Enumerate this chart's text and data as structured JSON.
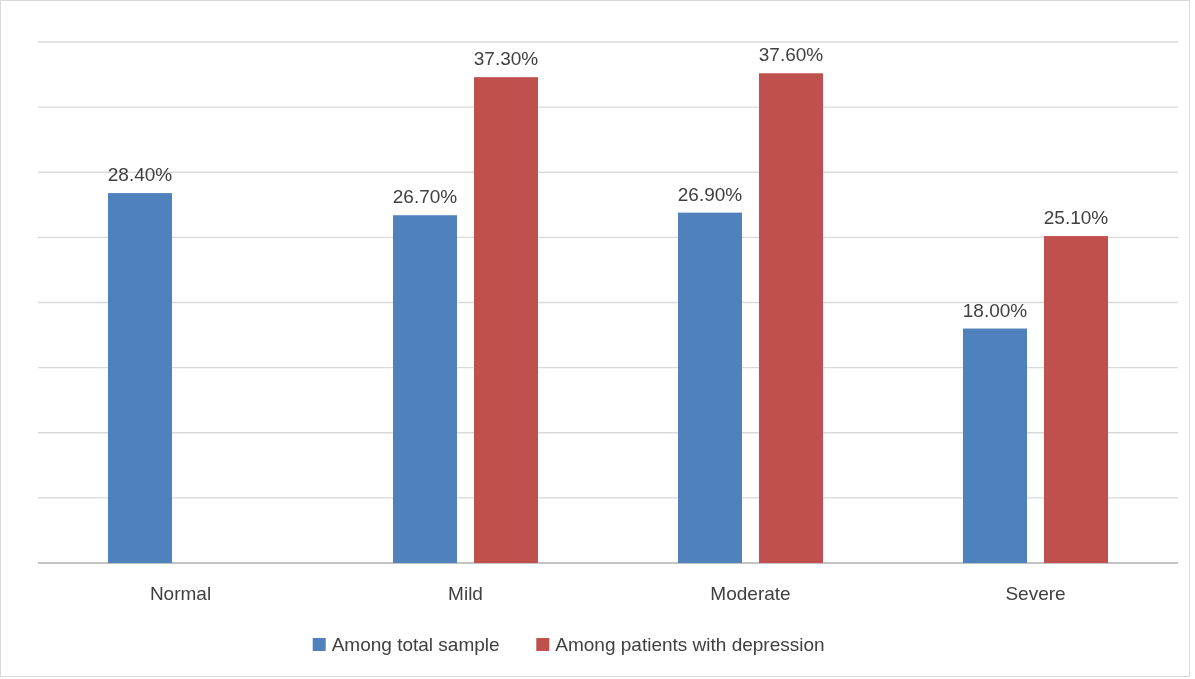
{
  "chart_data": {
    "type": "bar",
    "categories": [
      "Normal",
      "Mild",
      "Moderate",
      "Severe"
    ],
    "series": [
      {
        "name": "Among total sample",
        "color": "#4f81bd",
        "values": [
          28.4,
          26.7,
          26.9,
          18.0
        ],
        "value_labels": [
          "28.40%",
          "26.70%",
          "26.90%",
          "18.00%"
        ]
      },
      {
        "name": "Among patients with depression",
        "color": "#c0504d",
        "values": [
          null,
          37.3,
          37.6,
          25.1
        ],
        "value_labels": [
          null,
          "37.30%",
          "37.60%",
          "25.10%"
        ]
      }
    ],
    "ylim": [
      0,
      40
    ],
    "yticks": [
      {
        "value": 0,
        "label": null
      },
      {
        "value": 5,
        "label": null
      },
      {
        "value": 10,
        "label": null
      },
      {
        "value": 15,
        "label": null
      },
      {
        "value": 20,
        "label": null
      },
      {
        "value": 25,
        "label": null
      },
      {
        "value": 30,
        "label": null
      },
      {
        "value": 35,
        "label": null
      },
      {
        "value": 40,
        "label": null
      }
    ],
    "grid": "y",
    "legend": "bottom",
    "tick_labels": "x"
  }
}
